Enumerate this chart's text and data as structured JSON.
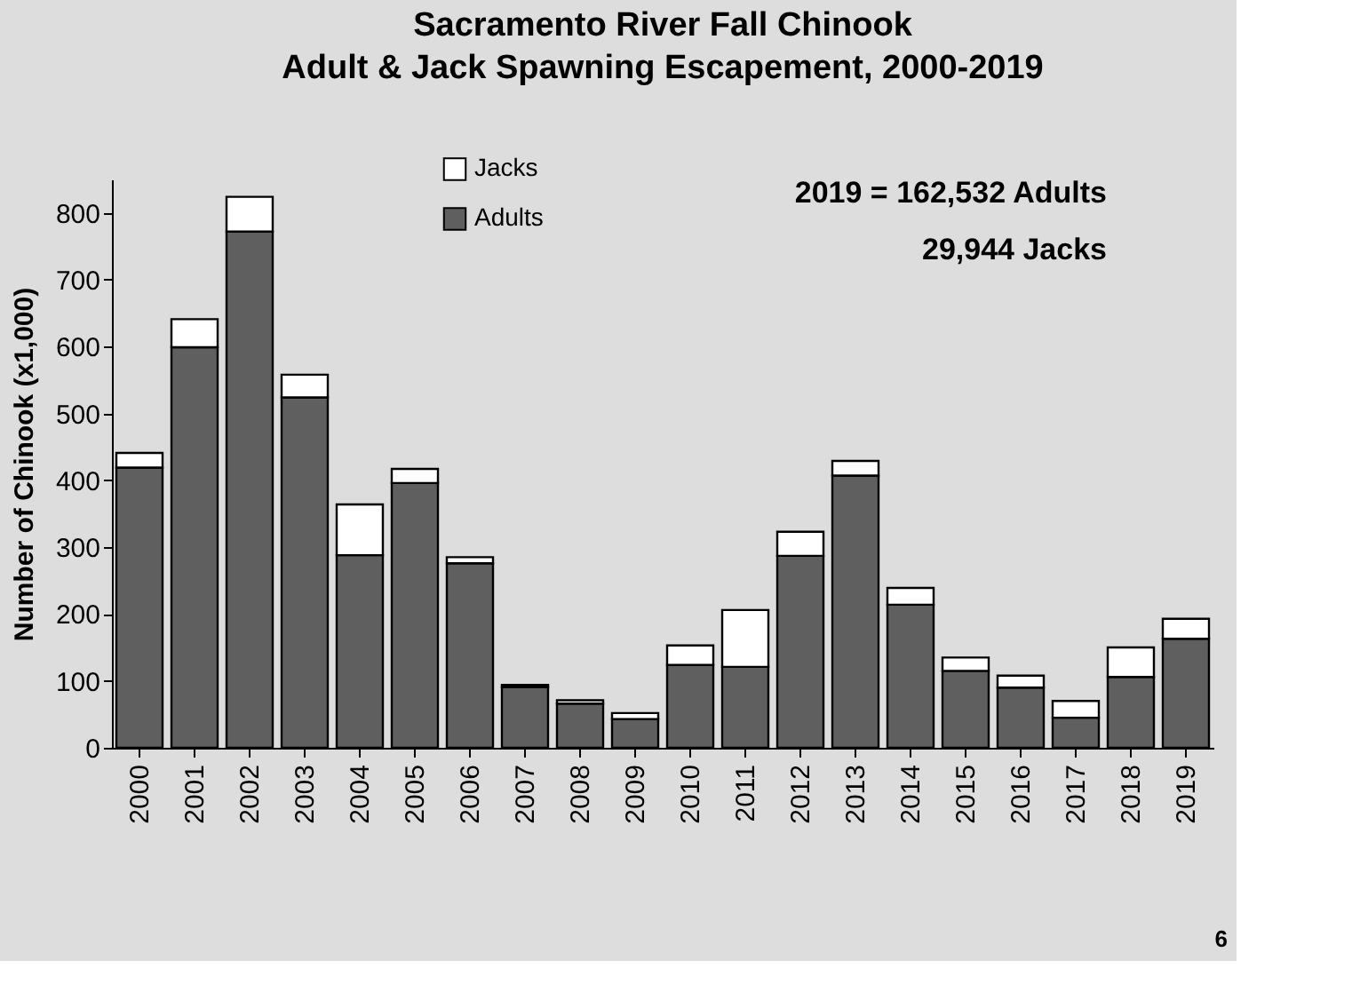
{
  "chart_data": {
    "type": "bar",
    "title": [
      "Sacramento River Fall Chinook",
      "Adult & Jack Spawning Escapement, 2000-2019"
    ],
    "ylabel": "Number of Chinook (x1,000)",
    "categories": [
      "2000",
      "2001",
      "2002",
      "2003",
      "2004",
      "2005",
      "2006",
      "2007",
      "2008",
      "2009",
      "2010",
      "2011",
      "2012",
      "2013",
      "2014",
      "2015",
      "2016",
      "2017",
      "2018",
      "2019"
    ],
    "stacked": true,
    "series": [
      {
        "name": "Adults",
        "color": "#5f5f5f",
        "values": [
          419,
          599,
          772,
          524,
          288,
          396,
          276,
          91,
          66,
          43,
          124,
          121,
          287,
          407,
          214,
          115,
          90,
          45,
          106,
          163
        ]
      },
      {
        "name": "Jacks",
        "color": "#ffffff",
        "values": [
          22,
          42,
          52,
          34,
          76,
          21,
          9,
          3,
          5,
          9,
          29,
          85,
          36,
          22,
          25,
          20,
          18,
          25,
          44,
          30
        ]
      }
    ],
    "ylim": [
      0,
      850
    ],
    "yticks": [
      0,
      100,
      200,
      300,
      400,
      500,
      600,
      700,
      800
    ],
    "legend": "top",
    "annotations": [
      "2019 = 162,532 Adults",
      "29,944 Jacks",
      "6"
    ]
  }
}
